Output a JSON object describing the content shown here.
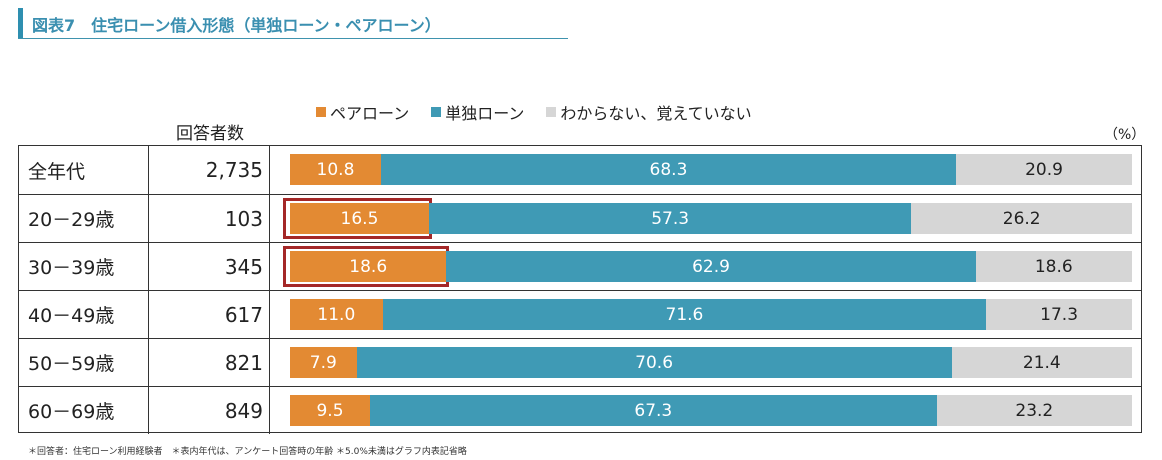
{
  "title": "図表7　住宅ローン借入形態（単独ローン・ペアローン）",
  "respondents_header": "回答者数",
  "unit": "（%）",
  "footnote": "＊回答者：住宅ローン利用経験者　＊表内年代は、アンケート回答時の年齢 ＊5.0%未満はグラフ内表記省略",
  "colors": {
    "title": "#3a8fb0",
    "pair": "#e38a33",
    "single": "#3f9ab5",
    "unknown": "#d6d6d6",
    "highlight": "#a42828"
  },
  "chart_data": {
    "type": "bar",
    "orientation": "horizontal",
    "stacked": true,
    "normalized": true,
    "categories": [
      "全年代",
      "20－29歳",
      "30－39歳",
      "40－49歳",
      "50－59歳",
      "60－69歳"
    ],
    "respondents": [
      "2,735",
      "103",
      "345",
      "617",
      "821",
      "849"
    ],
    "series": [
      {
        "name": "ペアローン",
        "values": [
          10.8,
          16.5,
          18.6,
          11.0,
          7.9,
          9.5
        ]
      },
      {
        "name": "単独ローン",
        "values": [
          68.3,
          57.3,
          62.9,
          71.6,
          70.6,
          67.3
        ]
      },
      {
        "name": "わからない、覚えていない",
        "values": [
          20.9,
          26.2,
          18.6,
          17.3,
          21.4,
          23.2
        ]
      }
    ],
    "value_labels": [
      [
        "10.8",
        "68.3",
        "20.9"
      ],
      [
        "16.5",
        "57.3",
        "26.2"
      ],
      [
        "18.6",
        "62.9",
        "18.6"
      ],
      [
        "11.0",
        "71.6",
        "17.3"
      ],
      [
        "7.9",
        "70.6",
        "21.4"
      ],
      [
        "9.5",
        "67.3",
        "23.2"
      ]
    ],
    "highlighted": [
      {
        "category": "20－29歳",
        "series": "ペアローン"
      },
      {
        "category": "30－39歳",
        "series": "ペアローン"
      }
    ],
    "xlim": [
      0,
      100
    ],
    "legend_position": "top"
  }
}
